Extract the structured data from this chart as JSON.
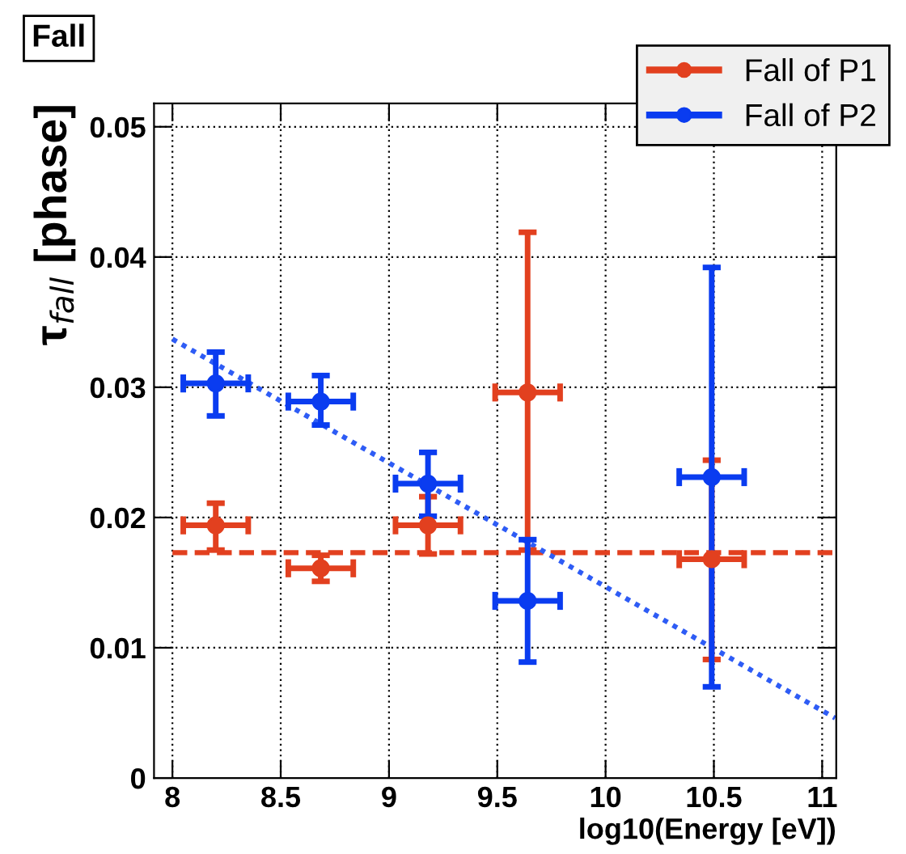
{
  "chart_data": {
    "type": "scatter",
    "title": "Fall",
    "xlabel": "log10(Energy [eV])",
    "ylabel": "τ$_{fall}$ [phase]",
    "xlim": [
      7.915,
      11.065
    ],
    "ylim": [
      0,
      0.0518
    ],
    "xticks": [
      8,
      8.5,
      9,
      9.5,
      10,
      10.5,
      11
    ],
    "yticks": [
      0,
      0.01,
      0.02,
      0.03,
      0.04,
      0.05
    ],
    "grid": true,
    "legend": "top right",
    "marker": "circle",
    "series": [
      {
        "name": "Fall of P1",
        "color": "#e2401f",
        "x": [
          8.2,
          8.685,
          9.18,
          9.64,
          10.49
        ],
        "values": [
          0.0194,
          0.0161,
          0.0194,
          0.0296,
          0.0168
        ],
        "errors": [
          [
            0.0175,
            0.0211
          ],
          [
            0.0151,
            0.0171
          ],
          [
            0.0172,
            0.0216
          ],
          [
            0.0175,
            0.0419
          ],
          [
            0.0091,
            0.0244
          ]
        ],
        "xerrors": [
          0.15,
          0.15,
          0.15,
          0.15,
          0.15
        ]
      },
      {
        "name": "Fall of P2",
        "color": "#0a3cf0",
        "x": [
          8.2,
          8.685,
          9.18,
          9.64,
          10.49
        ],
        "values": [
          0.0303,
          0.0289,
          0.0226,
          0.0136,
          0.0231
        ],
        "errors": [
          [
            0.0278,
            0.0327
          ],
          [
            0.0271,
            0.0309
          ],
          [
            0.0201,
            0.025
          ],
          [
            0.0089,
            0.0183
          ],
          [
            0.007,
            0.0392
          ]
        ],
        "xerrors": [
          0.15,
          0.15,
          0.15,
          0.15,
          0.15
        ]
      },
      {
        "type": "line",
        "color": "#e2401f",
        "line_style": "dashed",
        "marker": "none",
        "x": [
          8.0,
          11.06
        ],
        "values": [
          0.0173,
          0.0173
        ]
      },
      {
        "type": "line",
        "color": "#2e5cf5",
        "line_style": "dotted",
        "marker": "none",
        "x": [
          8.0,
          11.06
        ],
        "values": [
          0.0337,
          0.0046
        ]
      }
    ]
  }
}
